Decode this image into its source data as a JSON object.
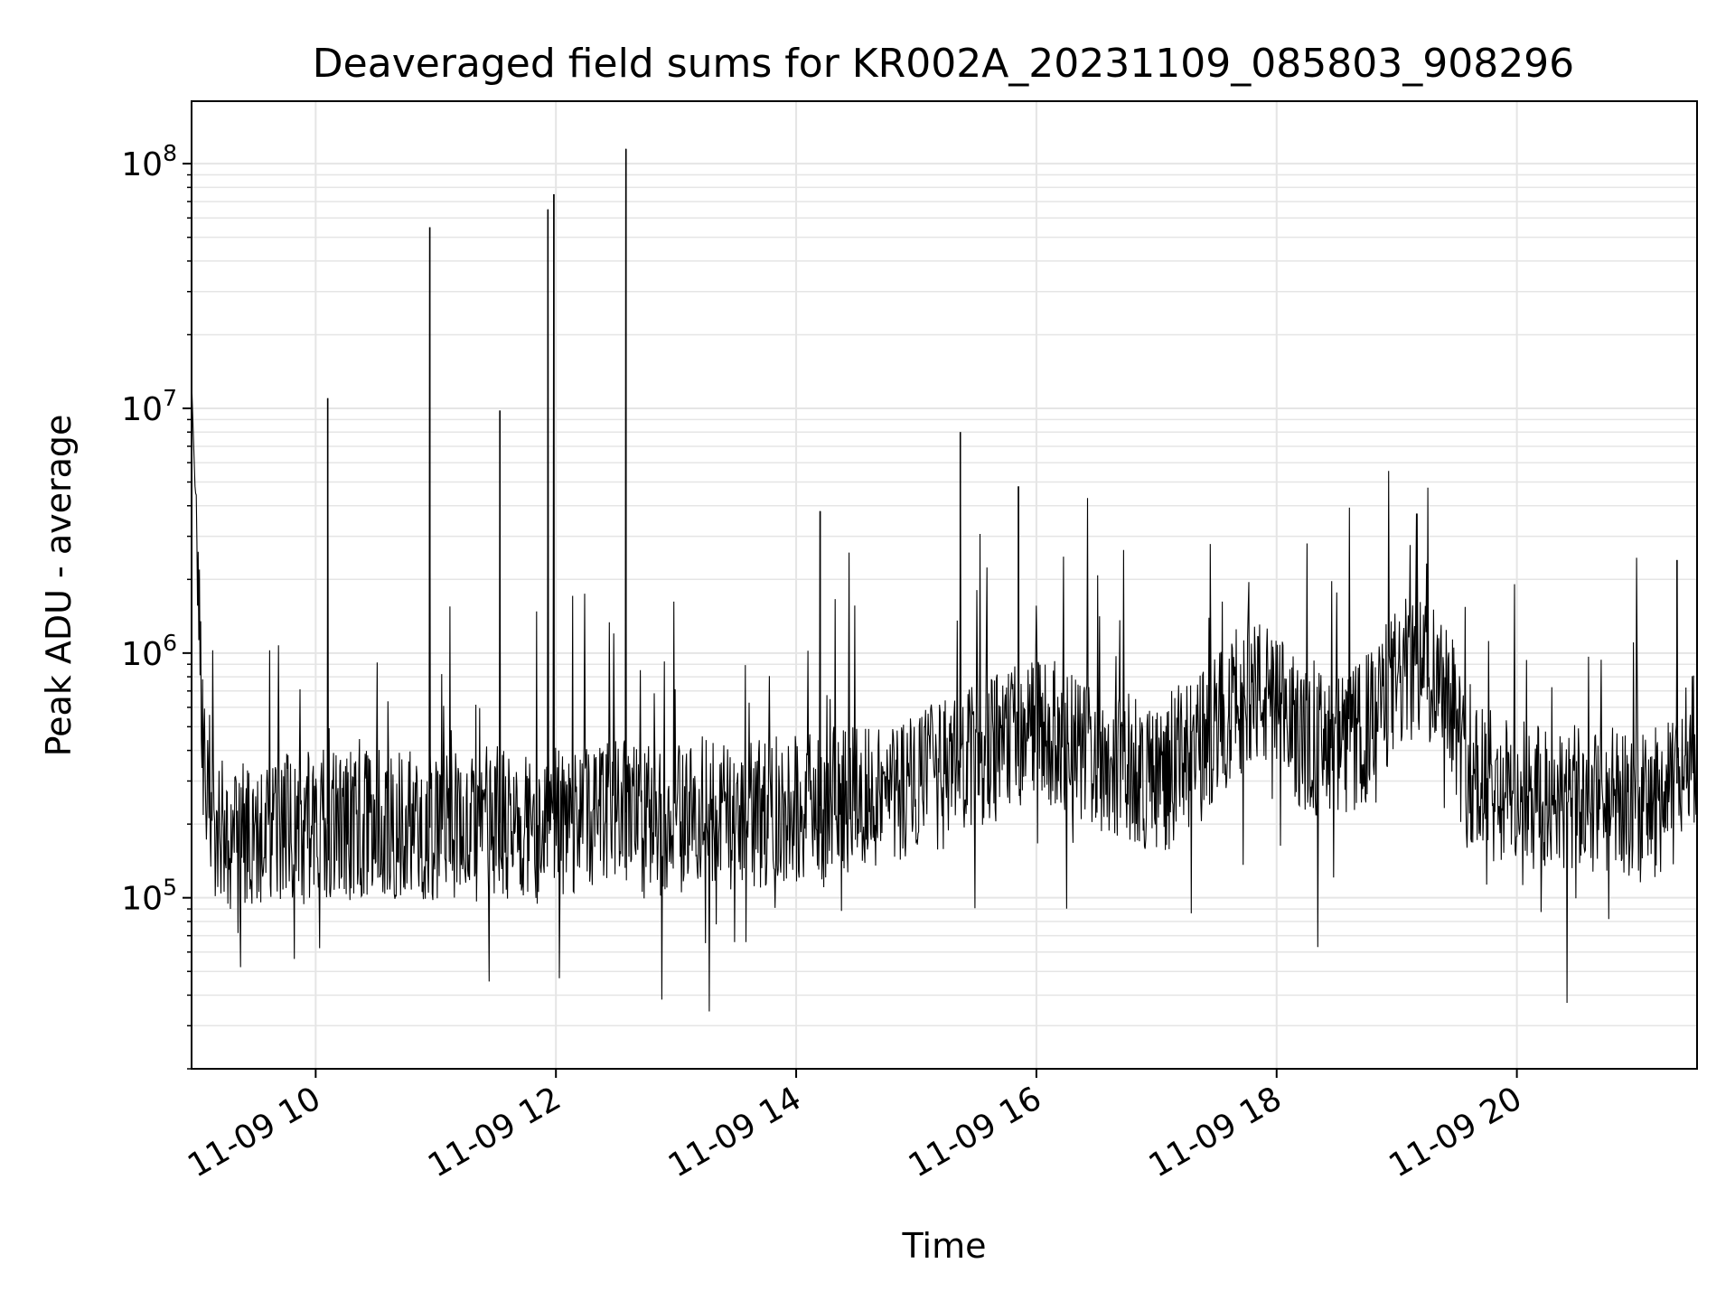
{
  "chart_data": {
    "type": "line",
    "title": "Deaveraged field sums for KR002A_20231109_085803_908296",
    "xlabel": "Time",
    "ylabel": "Peak ADU - average",
    "x_axis": {
      "kind": "datetime",
      "range": [
        "2023-11-09 08:58",
        "2023-11-09 21:30"
      ],
      "ticks": [
        {
          "value": "2023-11-09 10:00",
          "label": "11-09 10"
        },
        {
          "value": "2023-11-09 12:00",
          "label": "11-09 12"
        },
        {
          "value": "2023-11-09 14:00",
          "label": "11-09 14"
        },
        {
          "value": "2023-11-09 16:00",
          "label": "11-09 16"
        },
        {
          "value": "2023-11-09 18:00",
          "label": "11-09 18"
        },
        {
          "value": "2023-11-09 20:00",
          "label": "11-09 20"
        }
      ],
      "tick_rotation_deg": 30
    },
    "y_axis": {
      "scale": "log",
      "range": [
        20000,
        180000000
      ],
      "ticks": [
        {
          "value": 100000,
          "base": "10",
          "exp": "5"
        },
        {
          "value": 1000000,
          "base": "10",
          "exp": "6"
        },
        {
          "value": 10000000,
          "base": "10",
          "exp": "7"
        },
        {
          "value": 100000000,
          "base": "10",
          "exp": "8"
        }
      ]
    },
    "grid": true,
    "line_color": "#000000",
    "grid_color": "#e5e5e5",
    "series": [
      {
        "x": [
          "2023-11-09 08:58",
          "2023-11-09 09:04",
          "2023-11-09 09:10",
          "2023-11-09 09:18",
          "2023-11-09 09:25",
          "2023-11-09 09:33",
          "2023-11-09 09:42",
          "2023-11-09 09:50",
          "2023-11-09 09:58",
          "2023-11-09 10:06",
          "2023-11-09 10:14",
          "2023-11-09 10:22",
          "2023-11-09 10:30",
          "2023-11-09 10:38",
          "2023-11-09 10:46",
          "2023-11-09 10:54",
          "2023-11-09 11:02",
          "2023-11-09 11:10",
          "2023-11-09 11:18",
          "2023-11-09 11:26",
          "2023-11-09 11:34",
          "2023-11-09 11:42",
          "2023-11-09 11:50",
          "2023-11-09 11:58",
          "2023-11-09 12:06",
          "2023-11-09 12:14",
          "2023-11-09 12:22",
          "2023-11-09 12:30",
          "2023-11-09 12:38",
          "2023-11-09 12:46",
          "2023-11-09 12:54",
          "2023-11-09 13:02",
          "2023-11-09 13:10",
          "2023-11-09 13:18",
          "2023-11-09 13:26",
          "2023-11-09 13:34",
          "2023-11-09 13:42",
          "2023-11-09 13:50",
          "2023-11-09 13:58",
          "2023-11-09 14:06",
          "2023-11-09 14:14",
          "2023-11-09 14:22",
          "2023-11-09 14:30",
          "2023-11-09 14:38",
          "2023-11-09 14:46",
          "2023-11-09 14:54",
          "2023-11-09 15:02",
          "2023-11-09 15:10",
          "2023-11-09 15:18",
          "2023-11-09 15:26",
          "2023-11-09 15:34",
          "2023-11-09 15:42",
          "2023-11-09 15:50",
          "2023-11-09 15:58",
          "2023-11-09 16:06",
          "2023-11-09 16:14",
          "2023-11-09 16:22",
          "2023-11-09 16:30",
          "2023-11-09 16:38",
          "2023-11-09 16:46",
          "2023-11-09 16:54",
          "2023-11-09 17:02",
          "2023-11-09 17:10",
          "2023-11-09 17:18",
          "2023-11-09 17:26",
          "2023-11-09 17:34",
          "2023-11-09 17:42",
          "2023-11-09 17:50",
          "2023-11-09 17:58",
          "2023-11-09 18:06",
          "2023-11-09 18:14",
          "2023-11-09 18:22",
          "2023-11-09 18:30",
          "2023-11-09 18:38",
          "2023-11-09 18:46",
          "2023-11-09 18:54",
          "2023-11-09 19:02",
          "2023-11-09 19:10",
          "2023-11-09 19:18",
          "2023-11-09 19:26",
          "2023-11-09 19:34",
          "2023-11-09 19:42",
          "2023-11-09 19:50",
          "2023-11-09 19:58",
          "2023-11-09 20:06",
          "2023-11-09 20:14",
          "2023-11-09 20:22",
          "2023-11-09 20:30",
          "2023-11-09 20:38",
          "2023-11-09 20:46",
          "2023-11-09 20:54",
          "2023-11-09 21:02",
          "2023-11-09 21:10",
          "2023-11-09 21:18",
          "2023-11-09 21:26",
          "2023-11-09 21:30"
        ],
        "y": [
          13000000,
          400000,
          200000,
          180000,
          170000,
          160000,
          200000,
          180000,
          200000,
          200000,
          190000,
          200000,
          210000,
          190000,
          200000,
          195000,
          190000,
          200000,
          190000,
          210000,
          200000,
          205000,
          190000,
          210000,
          200000,
          220000,
          210000,
          230000,
          220000,
          210000,
          220000,
          210000,
          230000,
          220000,
          210000,
          230000,
          220000,
          230000,
          240000,
          230000,
          240000,
          250000,
          260000,
          270000,
          260000,
          280000,
          290000,
          310000,
          330000,
          350000,
          380000,
          420000,
          460000,
          500000,
          480000,
          420000,
          400000,
          380000,
          360000,
          340000,
          320000,
          310000,
          330000,
          380000,
          450000,
          550000,
          650000,
          700000,
          620000,
          520000,
          450000,
          420000,
          400000,
          430000,
          500000,
          650000,
          800000,
          900000,
          850000,
          780000,
          330000,
          300000,
          280000,
          270000,
          260000,
          250000,
          240000,
          250000,
          240000,
          250000,
          240000,
          230000,
          250000,
          260000,
          420000,
          400000
        ],
        "spikes": [
          {
            "x": "2023-11-09 10:06",
            "y": 11000000
          },
          {
            "x": "2023-11-09 10:57",
            "y": 55000000
          },
          {
            "x": "2023-11-09 11:32",
            "y": 9800000
          },
          {
            "x": "2023-11-09 11:56",
            "y": 65000000
          },
          {
            "x": "2023-11-09 11:59",
            "y": 75000000
          },
          {
            "x": "2023-11-09 12:35",
            "y": 115000000
          },
          {
            "x": "2023-11-09 14:12",
            "y": 3800000
          },
          {
            "x": "2023-11-09 15:22",
            "y": 8000000
          },
          {
            "x": "2023-11-09 15:51",
            "y": 4800000
          },
          {
            "x": "2023-11-09 19:10",
            "y": 3700000
          },
          {
            "x": "2023-11-09 21:20",
            "y": 2400000
          }
        ]
      }
    ]
  }
}
